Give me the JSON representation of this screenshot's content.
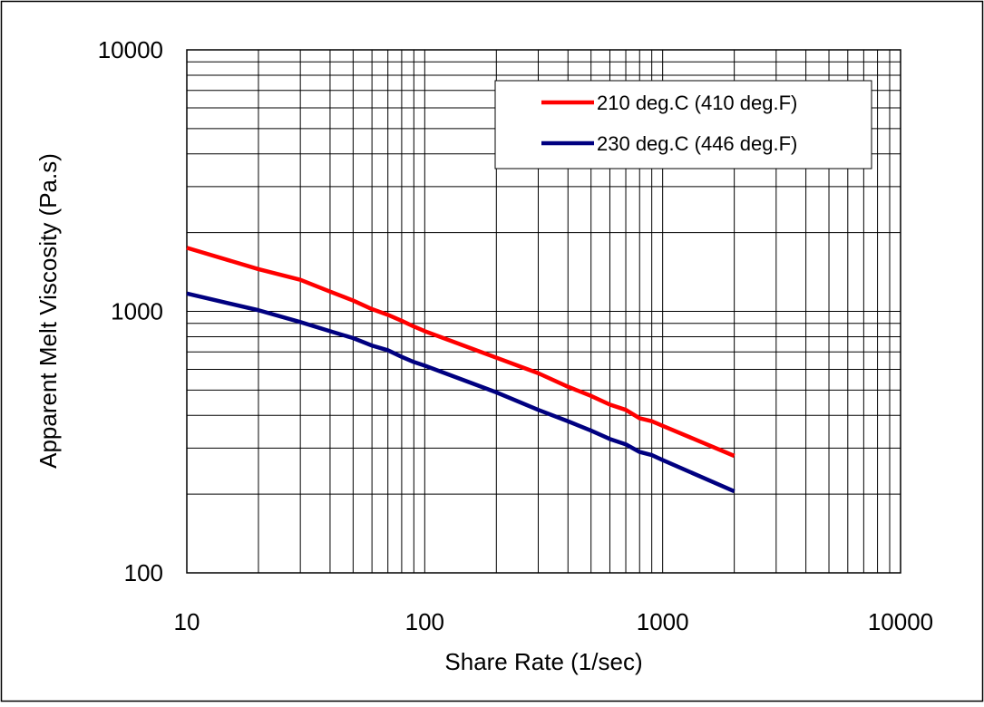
{
  "chart_data": {
    "type": "line",
    "title": "",
    "xlabel": "Share Rate (1/sec)",
    "ylabel": "Apparent Melt Viscosity (Pa.s)",
    "x_scale": "log",
    "y_scale": "log",
    "xlim": [
      10,
      10000
    ],
    "ylim": [
      100,
      10000
    ],
    "x_ticks": [
      "10",
      "100",
      "1000",
      "10000"
    ],
    "y_ticks": [
      "100",
      "1000",
      "10000"
    ],
    "grid": true,
    "legend_position": "top-right",
    "series": [
      {
        "name": "210 deg.C (410 deg.F)",
        "color": "#ff0000",
        "x": [
          10,
          20,
          30,
          40,
          50,
          60,
          70,
          80,
          90,
          100,
          200,
          300,
          400,
          500,
          600,
          700,
          800,
          900,
          1000,
          2000
        ],
        "y": [
          1750,
          1450,
          1320,
          1190,
          1100,
          1020,
          970,
          920,
          875,
          840,
          665,
          580,
          515,
          475,
          440,
          420,
          390,
          380,
          365,
          280
        ]
      },
      {
        "name": "230 deg.C (446 deg.F)",
        "color": "#000080",
        "x": [
          10,
          20,
          30,
          40,
          50,
          60,
          70,
          80,
          90,
          100,
          200,
          300,
          400,
          500,
          600,
          700,
          800,
          900,
          1000,
          2000
        ],
        "y": [
          1170,
          1010,
          910,
          840,
          790,
          740,
          710,
          670,
          640,
          620,
          490,
          420,
          380,
          350,
          325,
          310,
          290,
          282,
          270,
          205
        ]
      }
    ]
  }
}
